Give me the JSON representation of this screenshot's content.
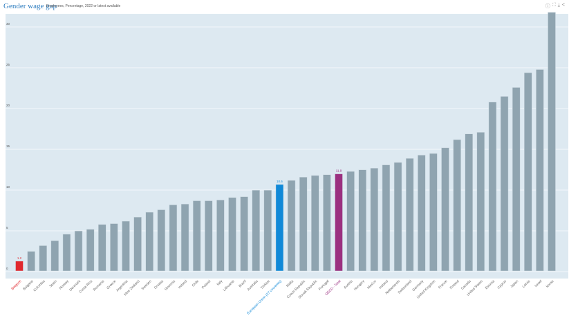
{
  "header": {
    "title": "Gender wage gap",
    "subtitle": "Employees, Percentage, 2022 or latest available"
  },
  "toolbar": [
    {
      "icon": "info-icon",
      "glyph": "ⓘ"
    },
    {
      "icon": "fullscreen-icon",
      "glyph": "⛶"
    },
    {
      "icon": "download-icon",
      "glyph": "⤓"
    },
    {
      "icon": "share-icon",
      "glyph": "<"
    }
  ],
  "colors": {
    "bar": "#8fa4b0",
    "highlight": "#e0282e",
    "eu": "#1089d8",
    "oecd": "#9b3080",
    "bg": "#dde9f1",
    "grid": "#f4f8fb"
  },
  "chart_data": {
    "type": "bar",
    "title": "Gender wage gap",
    "subtitle": "Employees, Percentage, 2022 or latest available",
    "ylim": [
      0,
      33
    ],
    "yticks": [
      0,
      5,
      10,
      15,
      20,
      25,
      30
    ],
    "grid": true,
    "categories": [
      "Belgium",
      "Bulgaria",
      "Colombia",
      "Spain",
      "Norway",
      "Denmark",
      "Costa Rica",
      "Romania",
      "Greece",
      "Argentina",
      "New Zealand",
      "Sweden",
      "Croatia",
      "Slovenia",
      "Ireland",
      "Chile",
      "Poland",
      "Italy",
      "Lithuania",
      "Brazil",
      "Australia",
      "Türkiye",
      "European Union (27 countries)",
      "Malta",
      "Czech Republic",
      "Slovak Republic",
      "Portugal",
      "OECD - Total",
      "Austria",
      "Hungary",
      "Mexico",
      "Iceland",
      "Netherlands",
      "Switzerland",
      "Germany",
      "United Kingdom",
      "France",
      "Finland",
      "Canada",
      "United States",
      "Estonia",
      "Cyprus",
      "Japan",
      "Latvia",
      "Israel",
      "Korea"
    ],
    "values": [
      1.2,
      2.4,
      3.1,
      3.7,
      4.5,
      4.9,
      5.1,
      5.7,
      5.8,
      6.1,
      6.6,
      7.2,
      7.5,
      8.1,
      8.2,
      8.6,
      8.6,
      8.7,
      9.0,
      9.1,
      9.9,
      9.9,
      10.6,
      11.1,
      11.5,
      11.7,
      11.8,
      11.9,
      12.2,
      12.4,
      12.6,
      13.0,
      13.3,
      13.8,
      14.2,
      14.4,
      15.1,
      16.1,
      16.8,
      17.0,
      20.7,
      21.4,
      22.5,
      24.3,
      24.7,
      31.7
    ],
    "data_labels": {
      "Belgium": "1.2",
      "European Union (27 countries)": "10.6",
      "OECD - Total": "11.9"
    },
    "highlight": {
      "Belgium": "highlight",
      "European Union (27 countries)": "eu",
      "OECD - Total": "oecd"
    }
  }
}
